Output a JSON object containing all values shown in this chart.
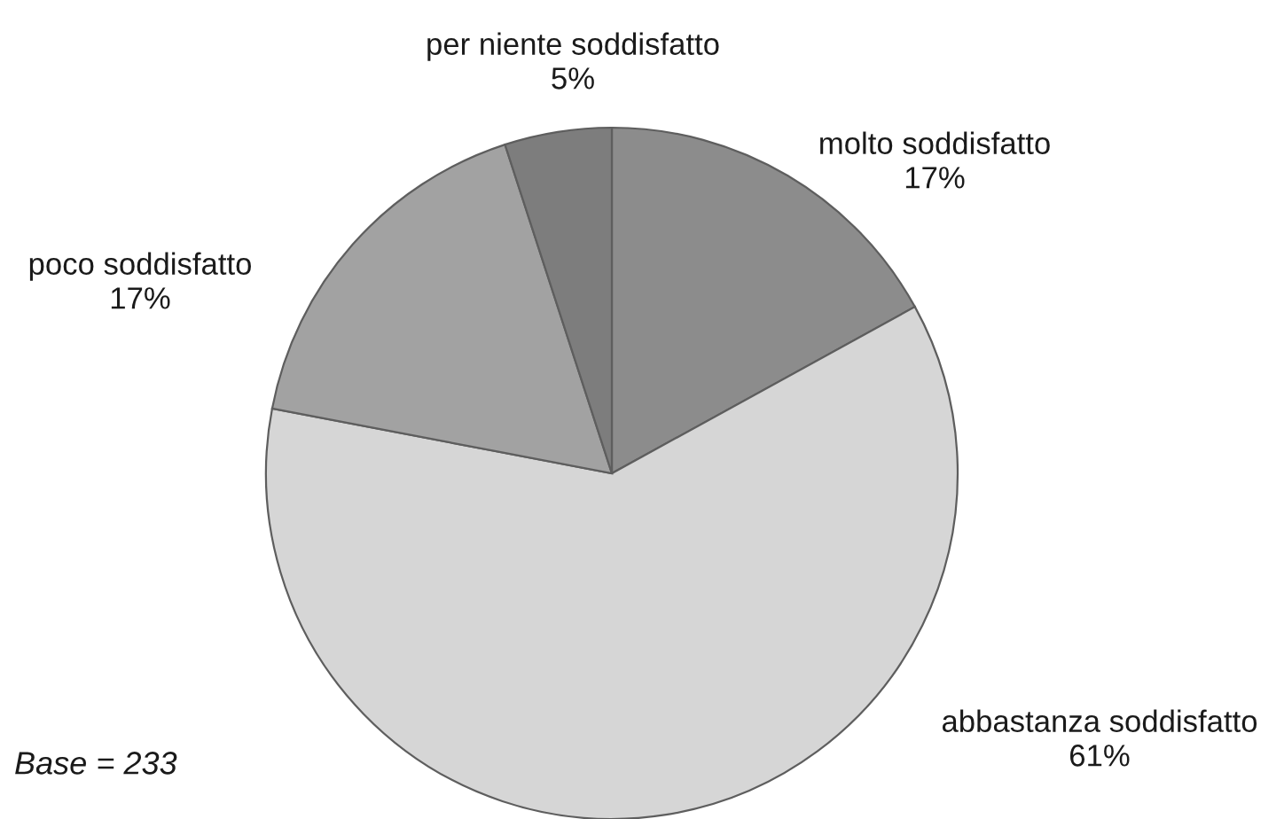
{
  "chart_data": {
    "type": "pie",
    "categories": [
      "molto soddisfatto",
      "abbastanza soddisfatto",
      "poco soddisfatto",
      "per niente soddisfatto"
    ],
    "values": [
      17,
      61,
      17,
      5
    ],
    "colors": [
      "#8c8c8c",
      "#d6d6d6",
      "#a2a2a2",
      "#7d7d7d"
    ],
    "value_labels": [
      "17%",
      "61%",
      "17%",
      "5%"
    ],
    "annotations": [
      "Base = 233"
    ]
  }
}
